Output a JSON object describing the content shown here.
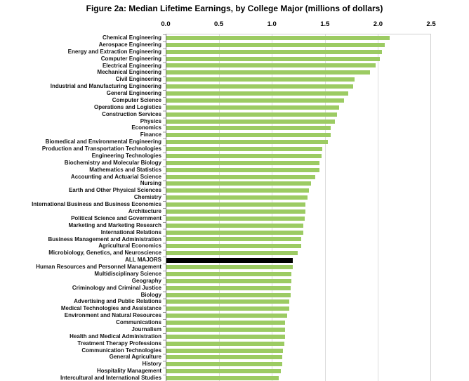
{
  "chart_data": {
    "type": "bar",
    "orientation": "horizontal",
    "title": "Figure 2a: Median Lifetime Earnings, by College Major (millions of dollars)",
    "xlabel": "",
    "ylabel": "",
    "xlim": [
      0,
      2.5
    ],
    "x_ticks": [
      "0.0",
      "0.5",
      "1.0",
      "1.5",
      "2.0",
      "2.5"
    ],
    "grid": "vertical gridlines every 0.5",
    "legend": "none",
    "bar_color": "#9ccb63",
    "highlight_color": "#000000",
    "highlight_category": "ALL MAJORS",
    "categories": [
      "Chemical Engineering",
      "Aerospace Engineering",
      "Energy and Extraction Engineering",
      "Computer Engineering",
      "Electrical Engineering",
      "Mechanical Engineering",
      "Civil Engineering",
      "Industrial and Manufacturing Engineering",
      "General Engineering",
      "Computer Science",
      "Operations and Logistics",
      "Construction Services",
      "Physics",
      "Economics",
      "Finance",
      "Biomedical and Environmental Engineering",
      "Production and Transportation Technologies",
      "Engineering Technologies",
      "Biochemistry and Molecular Biology",
      "Mathematics and Statistics",
      "Accounting and Actuarial Science",
      "Nursing",
      "Earth and Other Physical Sciences",
      "Chemistry",
      "International Business and Business Economics",
      "Architecture",
      "Political Science and Government",
      "Marketing and Marketing Research",
      "International Relations",
      "Business Management and Administration",
      "Agricultural Economics",
      "Microbiology, Genetics, and Neuroscience",
      "ALL MAJORS",
      "Human Resources and Personnel Management",
      "Multidisciplinary Science",
      "Geography",
      "Criminology and Criminal Justice",
      "Biology",
      "Advertising and Public Relations",
      "Medical Technologies and Assistance",
      "Environment and Natural Resources",
      "Communications",
      "Journalism",
      "Health and Medical Administration",
      "Treatment Therapy Professions",
      "Communication Technologies",
      "General Agriculture",
      "History",
      "Hospitality Management",
      "Intercultural and International Studies"
    ],
    "values": [
      2.1,
      2.06,
      2.03,
      2.01,
      1.97,
      1.92,
      1.77,
      1.76,
      1.71,
      1.67,
      1.63,
      1.61,
      1.59,
      1.55,
      1.55,
      1.52,
      1.47,
      1.46,
      1.44,
      1.44,
      1.4,
      1.36,
      1.34,
      1.33,
      1.31,
      1.31,
      1.3,
      1.29,
      1.29,
      1.27,
      1.27,
      1.24,
      1.19,
      1.19,
      1.18,
      1.18,
      1.17,
      1.17,
      1.16,
      1.16,
      1.14,
      1.12,
      1.12,
      1.12,
      1.11,
      1.1,
      1.09,
      1.09,
      1.08,
      1.06
    ]
  }
}
